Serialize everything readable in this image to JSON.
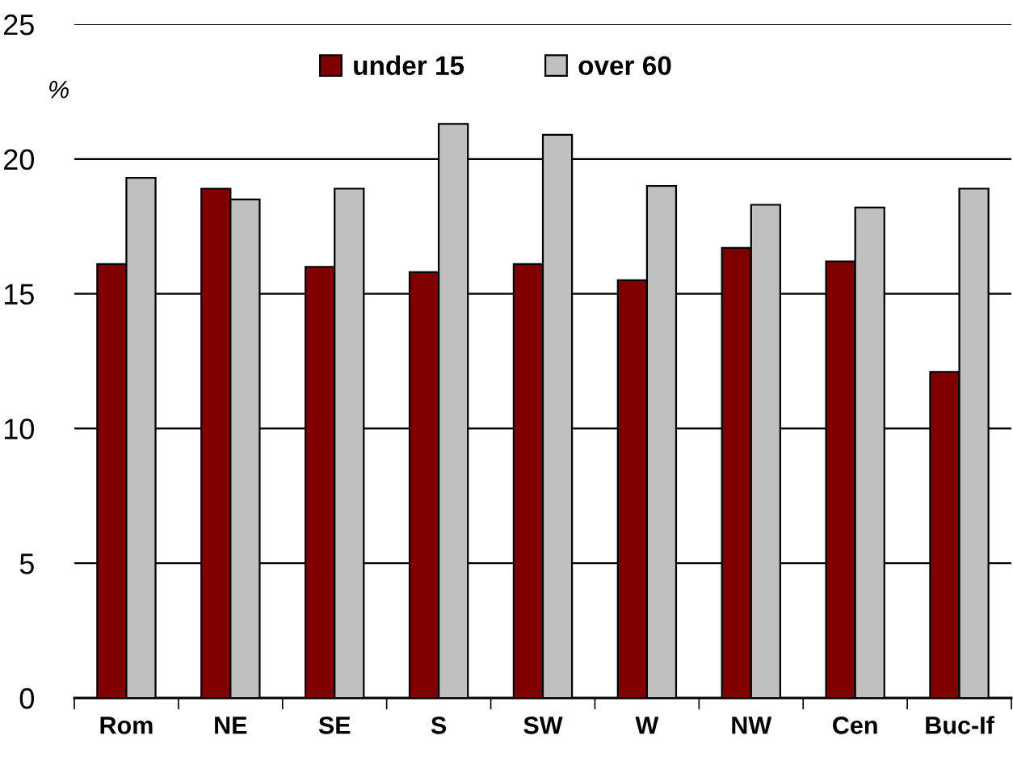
{
  "chart_data": {
    "type": "bar",
    "ylabel": "%",
    "categories": [
      "Rom",
      "NE",
      "SE",
      "S",
      "SW",
      "W",
      "NW",
      "Cen",
      "Buc-If"
    ],
    "series": [
      {
        "name": "under 15",
        "color": "#800000",
        "values": [
          16.1,
          18.9,
          16.0,
          15.8,
          16.1,
          15.5,
          16.7,
          16.2,
          12.1
        ]
      },
      {
        "name": "over 60",
        "color": "#c0c0c0",
        "values": [
          19.3,
          18.5,
          18.9,
          21.3,
          20.9,
          19.0,
          18.3,
          18.2,
          18.9
        ]
      }
    ],
    "ylim": [
      0,
      25
    ],
    "yticks": [
      0,
      5,
      10,
      15,
      20,
      25
    ],
    "grid": "y",
    "legend": "top"
  }
}
